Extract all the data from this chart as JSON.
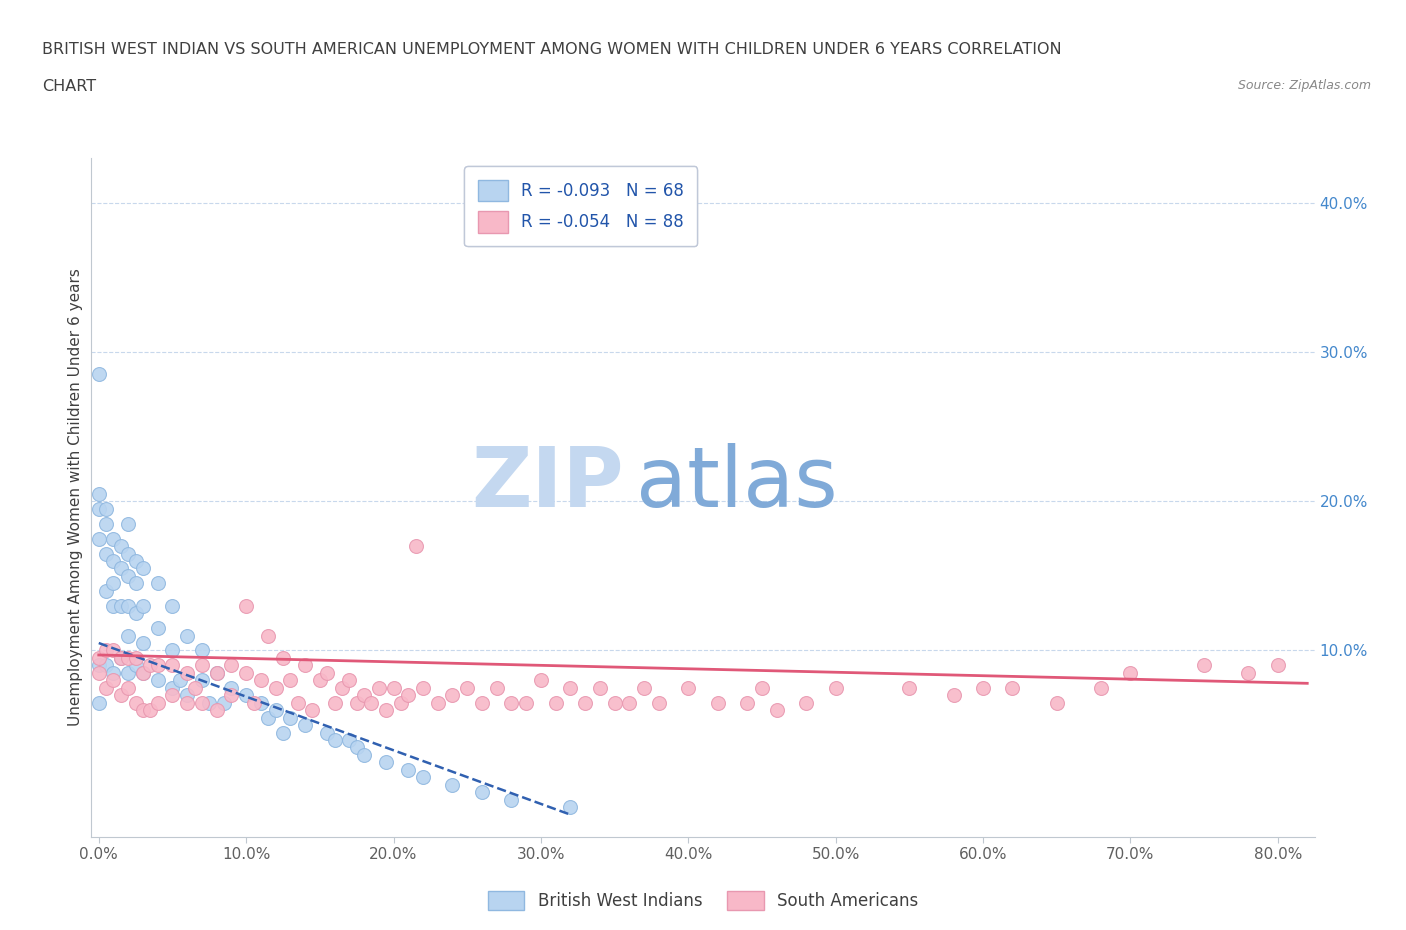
{
  "title_line1": "BRITISH WEST INDIAN VS SOUTH AMERICAN UNEMPLOYMENT AMONG WOMEN WITH CHILDREN UNDER 6 YEARS CORRELATION",
  "title_line2": "CHART",
  "source": "Source: ZipAtlas.com",
  "ylabel": "Unemployment Among Women with Children Under 6 years",
  "legend_entries": [
    {
      "label": "R = -0.093   N = 68",
      "color": "#b8d4f0",
      "edgecolor": "#90b8e0"
    },
    {
      "label": "R = -0.054   N = 88",
      "color": "#f8b8c8",
      "edgecolor": "#e898b0"
    }
  ],
  "legend_labels_bottom": [
    "British West Indians",
    "South Americans"
  ],
  "watermark_zip": "ZIP",
  "watermark_atlas": "atlas",
  "x_ticks": [
    0.0,
    0.1,
    0.2,
    0.3,
    0.4,
    0.5,
    0.6,
    0.7,
    0.8
  ],
  "x_tick_labels": [
    "0.0%",
    "10.0%",
    "20.0%",
    "30.0%",
    "40.0%",
    "50.0%",
    "60.0%",
    "70.0%",
    "80.0%"
  ],
  "y_ticks_right": [
    0.1,
    0.2,
    0.3,
    0.4
  ],
  "y_tick_labels_right": [
    "10.0%",
    "20.0%",
    "30.0%",
    "40.0%"
  ],
  "ylim": [
    -0.025,
    0.43
  ],
  "xlim": [
    -0.005,
    0.825
  ],
  "scatter_blue": {
    "x": [
      0.0,
      0.0,
      0.0,
      0.0,
      0.0,
      0.0,
      0.005,
      0.005,
      0.005,
      0.005,
      0.005,
      0.01,
      0.01,
      0.01,
      0.01,
      0.01,
      0.015,
      0.015,
      0.015,
      0.015,
      0.02,
      0.02,
      0.02,
      0.02,
      0.02,
      0.02,
      0.025,
      0.025,
      0.025,
      0.025,
      0.03,
      0.03,
      0.03,
      0.03,
      0.04,
      0.04,
      0.04,
      0.05,
      0.05,
      0.05,
      0.055,
      0.06,
      0.06,
      0.07,
      0.07,
      0.075,
      0.08,
      0.085,
      0.09,
      0.1,
      0.11,
      0.115,
      0.12,
      0.125,
      0.13,
      0.14,
      0.155,
      0.16,
      0.17,
      0.175,
      0.18,
      0.195,
      0.21,
      0.22,
      0.24,
      0.26,
      0.28,
      0.32
    ],
    "y": [
      0.285,
      0.205,
      0.195,
      0.175,
      0.09,
      0.065,
      0.195,
      0.185,
      0.165,
      0.14,
      0.09,
      0.175,
      0.16,
      0.145,
      0.13,
      0.085,
      0.17,
      0.155,
      0.13,
      0.095,
      0.185,
      0.165,
      0.15,
      0.13,
      0.11,
      0.085,
      0.16,
      0.145,
      0.125,
      0.09,
      0.155,
      0.13,
      0.105,
      0.085,
      0.145,
      0.115,
      0.08,
      0.13,
      0.1,
      0.075,
      0.08,
      0.11,
      0.07,
      0.1,
      0.08,
      0.065,
      0.085,
      0.065,
      0.075,
      0.07,
      0.065,
      0.055,
      0.06,
      0.045,
      0.055,
      0.05,
      0.045,
      0.04,
      0.04,
      0.035,
      0.03,
      0.025,
      0.02,
      0.015,
      0.01,
      0.005,
      0.0,
      -0.005
    ],
    "color": "#b8d4f0",
    "edgecolor": "#90b8e0"
  },
  "scatter_pink": {
    "x": [
      0.0,
      0.0,
      0.005,
      0.005,
      0.01,
      0.01,
      0.015,
      0.015,
      0.02,
      0.02,
      0.025,
      0.025,
      0.03,
      0.03,
      0.035,
      0.035,
      0.04,
      0.04,
      0.05,
      0.05,
      0.06,
      0.06,
      0.065,
      0.07,
      0.07,
      0.08,
      0.08,
      0.09,
      0.09,
      0.1,
      0.1,
      0.105,
      0.11,
      0.115,
      0.12,
      0.125,
      0.13,
      0.135,
      0.14,
      0.145,
      0.15,
      0.155,
      0.16,
      0.165,
      0.17,
      0.175,
      0.18,
      0.185,
      0.19,
      0.195,
      0.2,
      0.205,
      0.21,
      0.215,
      0.22,
      0.23,
      0.24,
      0.25,
      0.26,
      0.27,
      0.28,
      0.29,
      0.3,
      0.31,
      0.32,
      0.33,
      0.34,
      0.35,
      0.36,
      0.37,
      0.38,
      0.4,
      0.42,
      0.44,
      0.45,
      0.46,
      0.48,
      0.5,
      0.55,
      0.58,
      0.6,
      0.62,
      0.65,
      0.68,
      0.7,
      0.75,
      0.78,
      0.8
    ],
    "y": [
      0.095,
      0.085,
      0.1,
      0.075,
      0.1,
      0.08,
      0.095,
      0.07,
      0.095,
      0.075,
      0.095,
      0.065,
      0.085,
      0.06,
      0.09,
      0.06,
      0.09,
      0.065,
      0.09,
      0.07,
      0.085,
      0.065,
      0.075,
      0.09,
      0.065,
      0.085,
      0.06,
      0.09,
      0.07,
      0.13,
      0.085,
      0.065,
      0.08,
      0.11,
      0.075,
      0.095,
      0.08,
      0.065,
      0.09,
      0.06,
      0.08,
      0.085,
      0.065,
      0.075,
      0.08,
      0.065,
      0.07,
      0.065,
      0.075,
      0.06,
      0.075,
      0.065,
      0.07,
      0.17,
      0.075,
      0.065,
      0.07,
      0.075,
      0.065,
      0.075,
      0.065,
      0.065,
      0.08,
      0.065,
      0.075,
      0.065,
      0.075,
      0.065,
      0.065,
      0.075,
      0.065,
      0.075,
      0.065,
      0.065,
      0.075,
      0.06,
      0.065,
      0.075,
      0.075,
      0.07,
      0.075,
      0.075,
      0.065,
      0.075,
      0.085,
      0.09,
      0.085,
      0.09
    ],
    "color": "#f8b8c8",
    "edgecolor": "#e898b0"
  },
  "trend_blue": {
    "x": [
      0.0,
      0.32
    ],
    "y": [
      0.105,
      -0.01
    ],
    "color": "#3060b0",
    "style": "--",
    "lw": 1.8
  },
  "trend_pink": {
    "x": [
      0.0,
      0.82
    ],
    "y": [
      0.097,
      0.078
    ],
    "color": "#e05878",
    "style": "-",
    "lw": 2.0
  },
  "bg_color": "#ffffff",
  "grid_color": "#c8d8ec",
  "title_color": "#404040",
  "watermark_color_zip": "#c4d8f0",
  "watermark_color_atlas": "#80aad8"
}
